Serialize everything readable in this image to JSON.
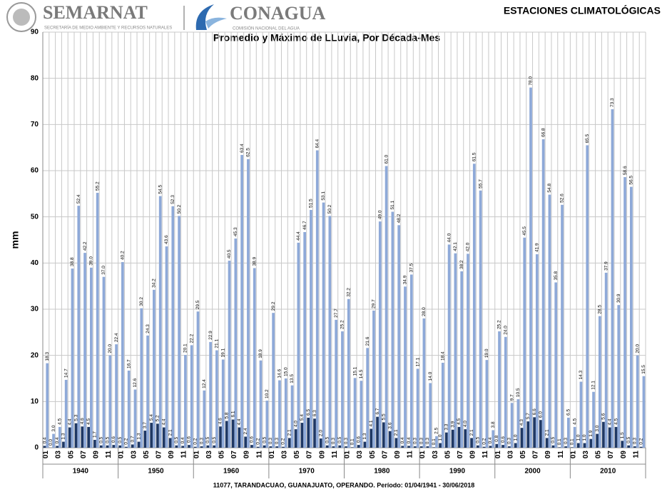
{
  "header": {
    "left_logo": "SEMARNAT",
    "left_sub": "SECRETARÍA DE MEDIO AMBIENTE Y RECURSOS NATURALES",
    "right_logo": "CONAGUA",
    "right_sub": "COMISIÓN NACIONAL DEL AGUA",
    "section": "ESTACIONES CLIMATOLÓGICAS"
  },
  "chart_data": {
    "type": "bar",
    "title": "Promedio y Máximo de LLuvia, Por Década-Mes",
    "y_label": "mm",
    "footnote": "11077, TARANDACUAO, GUANAJUATO, OPERANDO. Período: 01/04/1941 - 30/06/2018",
    "group_labels": [
      "1940",
      "1950",
      "1960",
      "1970",
      "1980",
      "1990",
      "2000",
      "2010"
    ],
    "categories": [
      "01",
      null,
      "03",
      null,
      "05",
      null,
      "07",
      null,
      "09",
      null,
      "11",
      null,
      "01",
      null,
      "03",
      null,
      "05",
      null,
      "07",
      null,
      "09",
      null,
      "11",
      null,
      "01",
      null,
      "03",
      null,
      "05",
      null,
      "07",
      null,
      "09",
      null,
      "11",
      null,
      "01",
      null,
      "03",
      null,
      "05",
      null,
      "07",
      null,
      "09",
      null,
      "11",
      null,
      "01",
      null,
      "03",
      null,
      "05",
      null,
      "07",
      null,
      "09",
      null,
      "11",
      null,
      "01",
      null,
      "03",
      null,
      "05",
      null,
      "07",
      null,
      "09",
      null,
      "11",
      null,
      "01",
      null,
      "03",
      null,
      "05",
      null,
      "07",
      null,
      "09",
      null,
      "11",
      null,
      "01",
      null,
      "03",
      null,
      "05",
      null,
      "07",
      null,
      "09",
      null,
      "11",
      null
    ],
    "ylim": [
      0,
      90
    ],
    "yticks": [
      0,
      10,
      20,
      30,
      40,
      50,
      60,
      70,
      80,
      90
    ],
    "grid": true,
    "series": [
      {
        "color": "#1f3864",
        "values": [
          0.4,
          0,
          0.4,
          1.3,
          4.4,
          5.3,
          4.6,
          4.5,
          1.7,
          0.5,
          0.5,
          0.6,
          0.5,
          0.2,
          0.7,
          1.3,
          3.7,
          5.4,
          5.2,
          4.4,
          2.1,
          0.5,
          0.4,
          0.6,
          0.2,
          0.3,
          0.5,
          0.5,
          4.6,
          5.8,
          6.1,
          4.4,
          2.4,
          0.6,
          0.2,
          0.5,
          0.3,
          0.3,
          0.2,
          2.1,
          4,
          5.4,
          6.5,
          6.3,
          2,
          0.5,
          0.3,
          0.5,
          0.3,
          0.1,
          0.6,
          1.3,
          4.1,
          6.7,
          5.5,
          3.6,
          2.1,
          0.4,
          0.4,
          0.3,
          0.3,
          0.3,
          0.1,
          1,
          3.3,
          3.9,
          4.5,
          4,
          2.1,
          0.5,
          0.2,
          0.4,
          0.8,
          0.6,
          0.3,
          1,
          4.3,
          5.7,
          6.6,
          6,
          2.1,
          0.5,
          0.1,
          0.3,
          0.1,
          1,
          1,
          1.9,
          3,
          5.6,
          4.4,
          4.5,
          1.5,
          0.5,
          0.3,
          0.2
        ],
        "value_labels": [
          "0.4",
          "0.0",
          "0.4",
          "1.3",
          "4.4",
          "5.3",
          "4.6",
          "4.5",
          "1.7",
          "0.5",
          "0.5",
          "0.6",
          "0.5",
          "0.2",
          "0.7",
          "1.3",
          "3.7",
          "5.4",
          "5.2",
          "4.4",
          "2.1",
          "0.5",
          "0.4",
          "0.6",
          "0.2",
          "0.3",
          "0.5",
          "0.5",
          "4.6",
          "5.8",
          "6.1",
          "4.4",
          "2.4",
          "0.6",
          "0.2",
          "0.5",
          "0.3",
          "0.3",
          "0.2",
          "2.1",
          "4.0",
          "5.4",
          "6.5",
          "6.3",
          "2.0",
          "0.5",
          "0.3",
          "0.5",
          "0.3",
          "0.1",
          "0.6",
          "1.3",
          "4.1",
          "6.7",
          "5.5",
          "3.6",
          "2.1",
          "0.4",
          "0.4",
          "0.3",
          "0.3",
          "0.3",
          "0.1",
          "1.0",
          "3.3",
          "3.9",
          "4.5",
          "4.0",
          "2.1",
          "0.5",
          "0.2",
          "0.4",
          "0.8",
          "0.6",
          "0.3",
          "1.0",
          "4.3",
          "5.7",
          "6.6",
          "6.0",
          "2.1",
          "0.5",
          "0.1",
          "0.3",
          "0.1",
          "1.0",
          "1.0",
          "1.9",
          "3.0",
          "5.6",
          "4.4",
          "4.5",
          "1.5",
          "0.5",
          "0.3",
          "0.2"
        ]
      },
      {
        "color": "#8ea9d8",
        "values": [
          18.3,
          3,
          4.5,
          14.7,
          38.8,
          52.4,
          42.2,
          39,
          55.2,
          37,
          20,
          22.4,
          40.2,
          16.7,
          12.6,
          30.2,
          24.3,
          34.2,
          54.5,
          43.6,
          52.3,
          50.2,
          20.1,
          22.2,
          29.5,
          12.4,
          22.9,
          21.1,
          19.1,
          40.5,
          45.3,
          63.4,
          62.5,
          38.9,
          18.9,
          10.2,
          29.2,
          14.6,
          15,
          13.5,
          44.4,
          46.7,
          51.5,
          64.4,
          53.1,
          50.2,
          27.7,
          25.2,
          32.2,
          15.1,
          14.5,
          21.6,
          29.7,
          49,
          61,
          51.1,
          48.2,
          34.9,
          37.5,
          17.1,
          28,
          14,
          2.5,
          18.4,
          44,
          42.1,
          38.2,
          42,
          61.5,
          55.7,
          19,
          3.8,
          25.2,
          24,
          9.7,
          10.5,
          45.5,
          78,
          41.9,
          66.8,
          54.8,
          35.8,
          52.6,
          6.5,
          4.5,
          14.3,
          65.5,
          12.1,
          28.5,
          37.9,
          73.3,
          30.9,
          58.6,
          56.5,
          20,
          15.5
        ],
        "value_labels": [
          "18.3",
          "3.0",
          "4.5",
          "14.7",
          "38.8",
          "52.4",
          "42.2",
          "39.0",
          "55.2",
          "37.0",
          "20.0",
          "22.4",
          "40.2",
          "16.7",
          "12.6",
          "30.2",
          "24.3",
          "34.2",
          "54.5",
          "43.6",
          "52.3",
          "50.2",
          "20.1",
          "22.2",
          "29.5",
          "12.4",
          "22.9",
          "21.1",
          "19.1",
          "40.5",
          "45.3",
          "63.4",
          "62.5",
          "38.9",
          "18.9",
          "10.2",
          "29.2",
          "14.6",
          "15.0",
          "13.5",
          "44.4",
          "46.7",
          "51.5",
          "64.4",
          "53.1",
          "50.2",
          "27.7",
          "25.2",
          "32.2",
          "15.1",
          "14.5",
          "21.6",
          "29.7",
          "49.0",
          "61.0",
          "51.1",
          "48.2",
          "34.9",
          "37.5",
          "17.1",
          "28.0",
          "14.0",
          "2.5",
          "18.4",
          "44.0",
          "42.1",
          "38.2",
          "42.0",
          "61.5",
          "55.7",
          "19.0",
          "3.8",
          "25.2",
          "24.0",
          "9.7",
          "10.5",
          "45.5",
          "78.0",
          "41.9",
          "66.8",
          "54.8",
          "35.8",
          "52.6",
          "6.5",
          "4.5",
          "14.3",
          "65.5",
          "12.1",
          "28.5",
          "37.9",
          "73.3",
          "30.9",
          "58.6",
          "56.5",
          "20.0",
          "15.5"
        ]
      }
    ]
  }
}
